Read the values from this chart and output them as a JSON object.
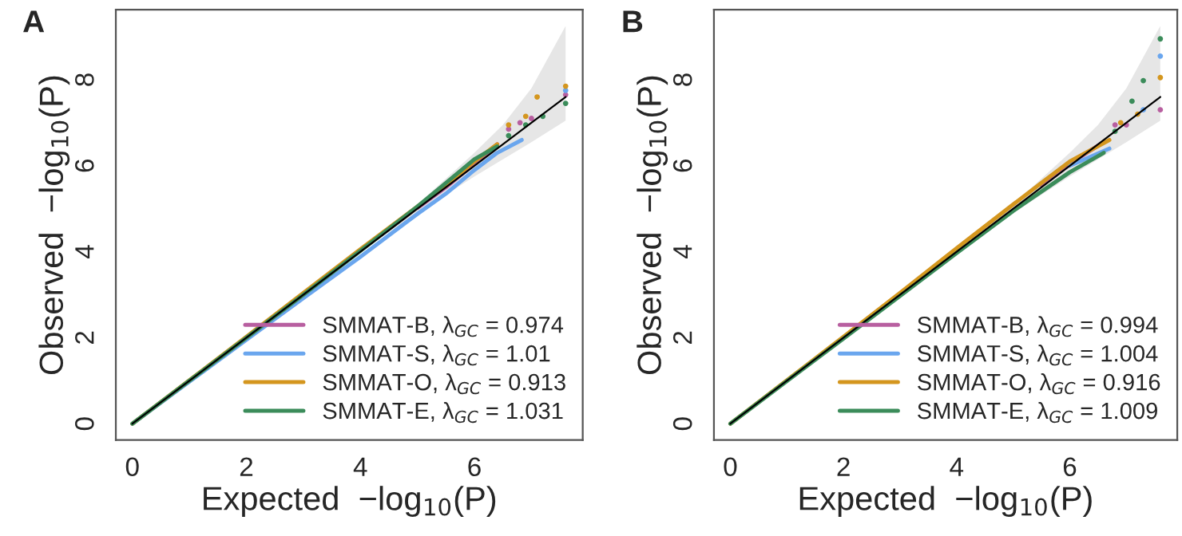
{
  "chart_data": [
    {
      "type": "line",
      "title": "A",
      "xlabel": "Expected  −log$_{10}$(P)",
      "ylabel": "Observed  −log$_{10}$(P)",
      "xlim": [
        -0.29,
        7.9
      ],
      "ylim": [
        -0.38,
        9.63
      ],
      "xticks": [
        0,
        2,
        4,
        6
      ],
      "yticks": [
        0,
        2,
        4,
        6,
        8
      ],
      "grid": false,
      "legend": "bottom right",
      "series": [
        {
          "x": [
            0,
            2,
            4,
            5,
            6,
            6.5,
            7,
            7.6
          ],
          "values": [
            0,
            2,
            4,
            5,
            6,
            6.5,
            7,
            7.6
          ],
          "lower": [
            0,
            2,
            4,
            4.9,
            5.75,
            6.15,
            6.55,
            7.05
          ],
          "upper": [
            0,
            2,
            4,
            5.1,
            6.3,
            6.95,
            7.8,
            9.25
          ],
          "color": "#000000"
        },
        {
          "name": "SMMAT-B, λ$_{GC}$ = 0.974",
          "color": "#b85fa0",
          "x": [
            5,
            5.5,
            6,
            6.4
          ],
          "values": [
            5.02,
            5.5,
            6.05,
            6.5
          ]
        },
        {
          "name": "SMMAT-S, λ$_{GC}$ = 1.01",
          "color": "#6aa6ee",
          "x": [
            0,
            1,
            2,
            3,
            4,
            5,
            5.5,
            6,
            6.4,
            6.83
          ],
          "values": [
            0,
            0.98,
            1.95,
            2.92,
            3.88,
            4.88,
            5.35,
            5.9,
            6.3,
            6.6
          ]
        },
        {
          "name": "SMMAT-O, λ$_{GC}$ = 0.913",
          "color": "#d4961e",
          "x": [
            0,
            1,
            2,
            3,
            4,
            5,
            5.5,
            6,
            6.4
          ],
          "values": [
            0,
            1.01,
            2.02,
            3.04,
            4.06,
            5.05,
            5.55,
            6.1,
            6.5
          ]
        },
        {
          "name": "SMMAT-E, λ$_{GC}$ = 1.031",
          "color": "#3b8c5a",
          "x": [
            0,
            1,
            2,
            3,
            4,
            5,
            5.5,
            6,
            6.4
          ],
          "values": [
            0,
            1,
            2,
            3,
            4.02,
            5.05,
            5.6,
            6.15,
            6.45
          ]
        },
        {
          "type": "scatter",
          "color": "#b85fa0",
          "x": [
            6.6,
            6.8,
            7.0,
            7.6
          ],
          "values": [
            6.85,
            7.0,
            7.1,
            7.65
          ]
        },
        {
          "type": "scatter",
          "color": "#6aa6ee",
          "x": [
            7.6
          ],
          "values": [
            7.75
          ]
        },
        {
          "type": "scatter",
          "color": "#d4961e",
          "x": [
            6.6,
            6.9,
            7.1,
            7.6
          ],
          "values": [
            6.95,
            7.15,
            7.6,
            7.85
          ]
        },
        {
          "type": "scatter",
          "color": "#3b8c5a",
          "x": [
            6.6,
            6.9,
            7.2,
            7.6
          ],
          "values": [
            6.7,
            6.95,
            7.15,
            7.45
          ]
        }
      ]
    },
    {
      "type": "line",
      "title": "B",
      "xlabel": "Expected  −log$_{10}$(P)",
      "ylabel": "Observed  −log$_{10}$(P)",
      "xlim": [
        -0.29,
        7.9
      ],
      "ylim": [
        -0.38,
        9.63
      ],
      "xticks": [
        0,
        2,
        4,
        6
      ],
      "yticks": [
        0,
        2,
        4,
        6,
        8
      ],
      "grid": false,
      "legend": "bottom right",
      "series": [
        {
          "x": [
            0,
            2,
            4,
            5,
            6,
            6.5,
            7,
            7.6
          ],
          "values": [
            0,
            2,
            4,
            5,
            6,
            6.5,
            7,
            7.6
          ],
          "lower": [
            0,
            2,
            4,
            4.9,
            5.75,
            6.15,
            6.55,
            7.05
          ],
          "upper": [
            0,
            2,
            4,
            5.1,
            6.3,
            6.95,
            7.8,
            9.25
          ],
          "color": "#000000"
        },
        {
          "name": "SMMAT-B, λ$_{GC}$ = 0.994",
          "color": "#b85fa0",
          "x": [
            5.5,
            6,
            6.6
          ],
          "values": [
            5.55,
            6.05,
            6.55
          ]
        },
        {
          "name": "SMMAT-S, λ$_{GC}$ = 1.004",
          "color": "#6aa6ee",
          "x": [
            6,
            6.7
          ],
          "values": [
            6.0,
            6.4
          ]
        },
        {
          "name": "SMMAT-O, λ$_{GC}$ = 0.916",
          "color": "#d4961e",
          "x": [
            0,
            1,
            2,
            3,
            4,
            5,
            5.5,
            6,
            6.7
          ],
          "values": [
            0,
            1.01,
            2.02,
            3.04,
            4.08,
            5.1,
            5.6,
            6.1,
            6.6
          ]
        },
        {
          "name": "SMMAT-E, λ$_{GC}$ = 1.009",
          "color": "#3b8c5a",
          "x": [
            0,
            1,
            2,
            3,
            4,
            5,
            5.5,
            6,
            6.6
          ],
          "values": [
            0,
            0.99,
            1.98,
            2.97,
            3.97,
            4.95,
            5.4,
            5.85,
            6.3
          ]
        },
        {
          "type": "scatter",
          "color": "#b85fa0",
          "x": [
            6.8,
            7.0,
            7.6
          ],
          "values": [
            6.95,
            6.95,
            7.3
          ]
        },
        {
          "type": "scatter",
          "color": "#6aa6ee",
          "x": [
            7.3,
            7.6
          ],
          "values": [
            7.3,
            8.55
          ]
        },
        {
          "type": "scatter",
          "color": "#d4961e",
          "x": [
            6.9,
            7.2,
            7.6
          ],
          "values": [
            7.0,
            7.2,
            8.05
          ]
        },
        {
          "type": "scatter",
          "color": "#3b8c5a",
          "x": [
            6.8,
            7.1,
            7.3,
            7.6
          ],
          "values": [
            6.8,
            7.5,
            7.98,
            8.95
          ]
        }
      ]
    }
  ]
}
